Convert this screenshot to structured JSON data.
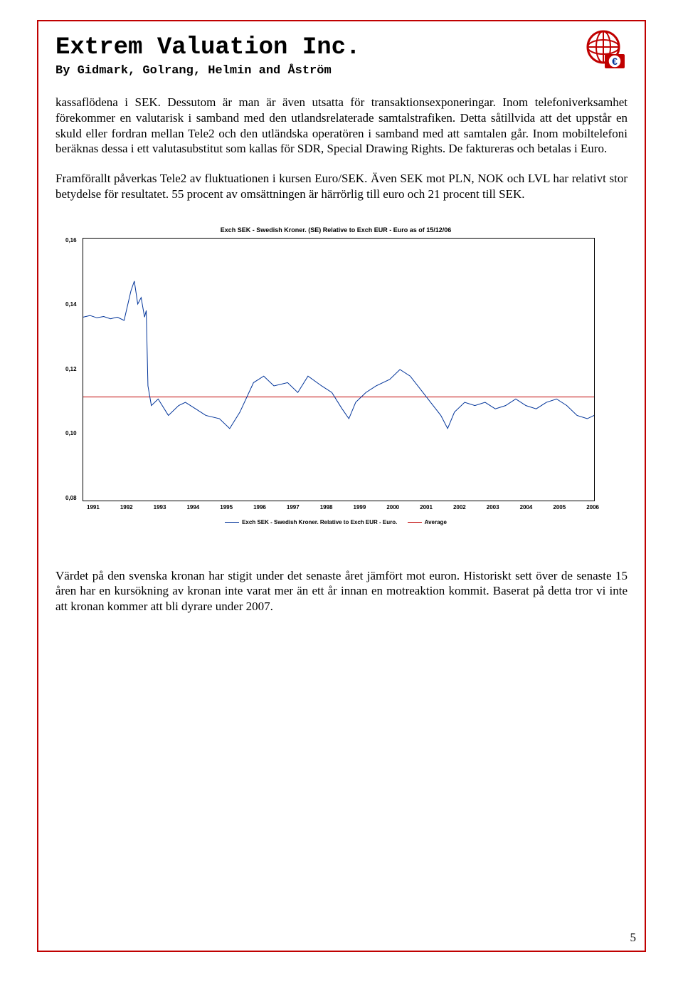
{
  "header": {
    "company_name": "Extrem Valuation Inc.",
    "byline": "By Gidmark, Golrang, Helmin and Åström",
    "logo_colors": {
      "globe": "#c00000",
      "badge_bg": "#ffffff",
      "badge_border": "#c00000",
      "euro": "#003399"
    }
  },
  "paragraphs": {
    "p1": "kassaflödena i SEK. Dessutom är man är även utsatta för transaktionsexponeringar. Inom telefoniverksamhet förekommer en valutarisk i samband med den utlandsrelaterade samtalstrafiken. Detta såtillvida att det uppstår en skuld eller fordran mellan Tele2 och den utländska operatören i samband med att samtalen går. Inom mobiltelefoni beräknas dessa i ett valutasubstitut som kallas för SDR, Special Drawing Rights. De faktureras och betalas i Euro.",
    "p2": "Framförallt påverkas Tele2 av fluktuationen i kursen Euro/SEK. Även SEK mot PLN, NOK och LVL har relativt stor betydelse för resultatet. 55 procent av omsättningen är härrörlig till euro och 21 procent till SEK.",
    "p3": "Värdet på den svenska kronan har stigit under det senaste året jämfört mot euron. Historiskt sett över de senaste 15 åren har en kursökning av kronan inte varat mer än ett år innan en motreaktion kommit. Baserat på detta tror vi inte att kronan kommer att bli dyrare under 2007."
  },
  "chart": {
    "type": "line",
    "title": "Exch SEK - Swedish Kroner. (SE) Relative to Exch EUR - Euro as of 15/12/06",
    "ylim": [
      0.08,
      0.16
    ],
    "ytick_step": 0.02,
    "ytick_labels": [
      "0,16",
      "0,14",
      "0,12",
      "0,10",
      "0,08"
    ],
    "xlim": [
      1991,
      2006
    ],
    "xtick_labels": [
      "1991",
      "1992",
      "1993",
      "1994",
      "1995",
      "1996",
      "1997",
      "1998",
      "1999",
      "2000",
      "2001",
      "2002",
      "2003",
      "2004",
      "2005",
      "2006"
    ],
    "average_value": 0.112,
    "series_name": "Exch SEK - Swedish Kroner. Relative to Exch EUR - Euro.",
    "average_label": "Average",
    "series_color": "#003399",
    "average_color": "#c00000",
    "background_color": "#ffffff",
    "border_color": "#000000",
    "line_width": 1,
    "series": [
      {
        "x": 1991.0,
        "y": 0.136
      },
      {
        "x": 1991.2,
        "y": 0.1365
      },
      {
        "x": 1991.4,
        "y": 0.1358
      },
      {
        "x": 1991.6,
        "y": 0.1362
      },
      {
        "x": 1991.8,
        "y": 0.1355
      },
      {
        "x": 1992.0,
        "y": 0.136
      },
      {
        "x": 1992.2,
        "y": 0.135
      },
      {
        "x": 1992.4,
        "y": 0.144
      },
      {
        "x": 1992.5,
        "y": 0.147
      },
      {
        "x": 1992.6,
        "y": 0.14
      },
      {
        "x": 1992.7,
        "y": 0.142
      },
      {
        "x": 1992.8,
        "y": 0.136
      },
      {
        "x": 1992.85,
        "y": 0.138
      },
      {
        "x": 1992.9,
        "y": 0.115
      },
      {
        "x": 1993.0,
        "y": 0.109
      },
      {
        "x": 1993.2,
        "y": 0.111
      },
      {
        "x": 1993.5,
        "y": 0.106
      },
      {
        "x": 1993.8,
        "y": 0.109
      },
      {
        "x": 1994.0,
        "y": 0.11
      },
      {
        "x": 1994.3,
        "y": 0.108
      },
      {
        "x": 1994.6,
        "y": 0.106
      },
      {
        "x": 1995.0,
        "y": 0.105
      },
      {
        "x": 1995.3,
        "y": 0.102
      },
      {
        "x": 1995.6,
        "y": 0.107
      },
      {
        "x": 1996.0,
        "y": 0.116
      },
      {
        "x": 1996.3,
        "y": 0.118
      },
      {
        "x": 1996.6,
        "y": 0.115
      },
      {
        "x": 1997.0,
        "y": 0.116
      },
      {
        "x": 1997.3,
        "y": 0.113
      },
      {
        "x": 1997.6,
        "y": 0.118
      },
      {
        "x": 1998.0,
        "y": 0.115
      },
      {
        "x": 1998.3,
        "y": 0.113
      },
      {
        "x": 1998.6,
        "y": 0.108
      },
      {
        "x": 1998.8,
        "y": 0.105
      },
      {
        "x": 1999.0,
        "y": 0.11
      },
      {
        "x": 1999.3,
        "y": 0.113
      },
      {
        "x": 1999.6,
        "y": 0.115
      },
      {
        "x": 2000.0,
        "y": 0.117
      },
      {
        "x": 2000.3,
        "y": 0.12
      },
      {
        "x": 2000.6,
        "y": 0.118
      },
      {
        "x": 2000.9,
        "y": 0.114
      },
      {
        "x": 2001.2,
        "y": 0.11
      },
      {
        "x": 2001.5,
        "y": 0.106
      },
      {
        "x": 2001.7,
        "y": 0.102
      },
      {
        "x": 2001.9,
        "y": 0.107
      },
      {
        "x": 2002.2,
        "y": 0.11
      },
      {
        "x": 2002.5,
        "y": 0.109
      },
      {
        "x": 2002.8,
        "y": 0.11
      },
      {
        "x": 2003.1,
        "y": 0.108
      },
      {
        "x": 2003.4,
        "y": 0.109
      },
      {
        "x": 2003.7,
        "y": 0.111
      },
      {
        "x": 2004.0,
        "y": 0.109
      },
      {
        "x": 2004.3,
        "y": 0.108
      },
      {
        "x": 2004.6,
        "y": 0.11
      },
      {
        "x": 2004.9,
        "y": 0.111
      },
      {
        "x": 2005.2,
        "y": 0.109
      },
      {
        "x": 2005.5,
        "y": 0.106
      },
      {
        "x": 2005.8,
        "y": 0.105
      },
      {
        "x": 2006.0,
        "y": 0.106
      },
      {
        "x": 2006.3,
        "y": 0.108
      },
      {
        "x": 2006.6,
        "y": 0.109
      },
      {
        "x": 2006.9,
        "y": 0.111
      },
      {
        "x": 2006.98,
        "y": 0.111
      }
    ]
  },
  "page_number": "5",
  "colors": {
    "page_border": "#c00000",
    "text": "#000000",
    "background": "#ffffff"
  }
}
